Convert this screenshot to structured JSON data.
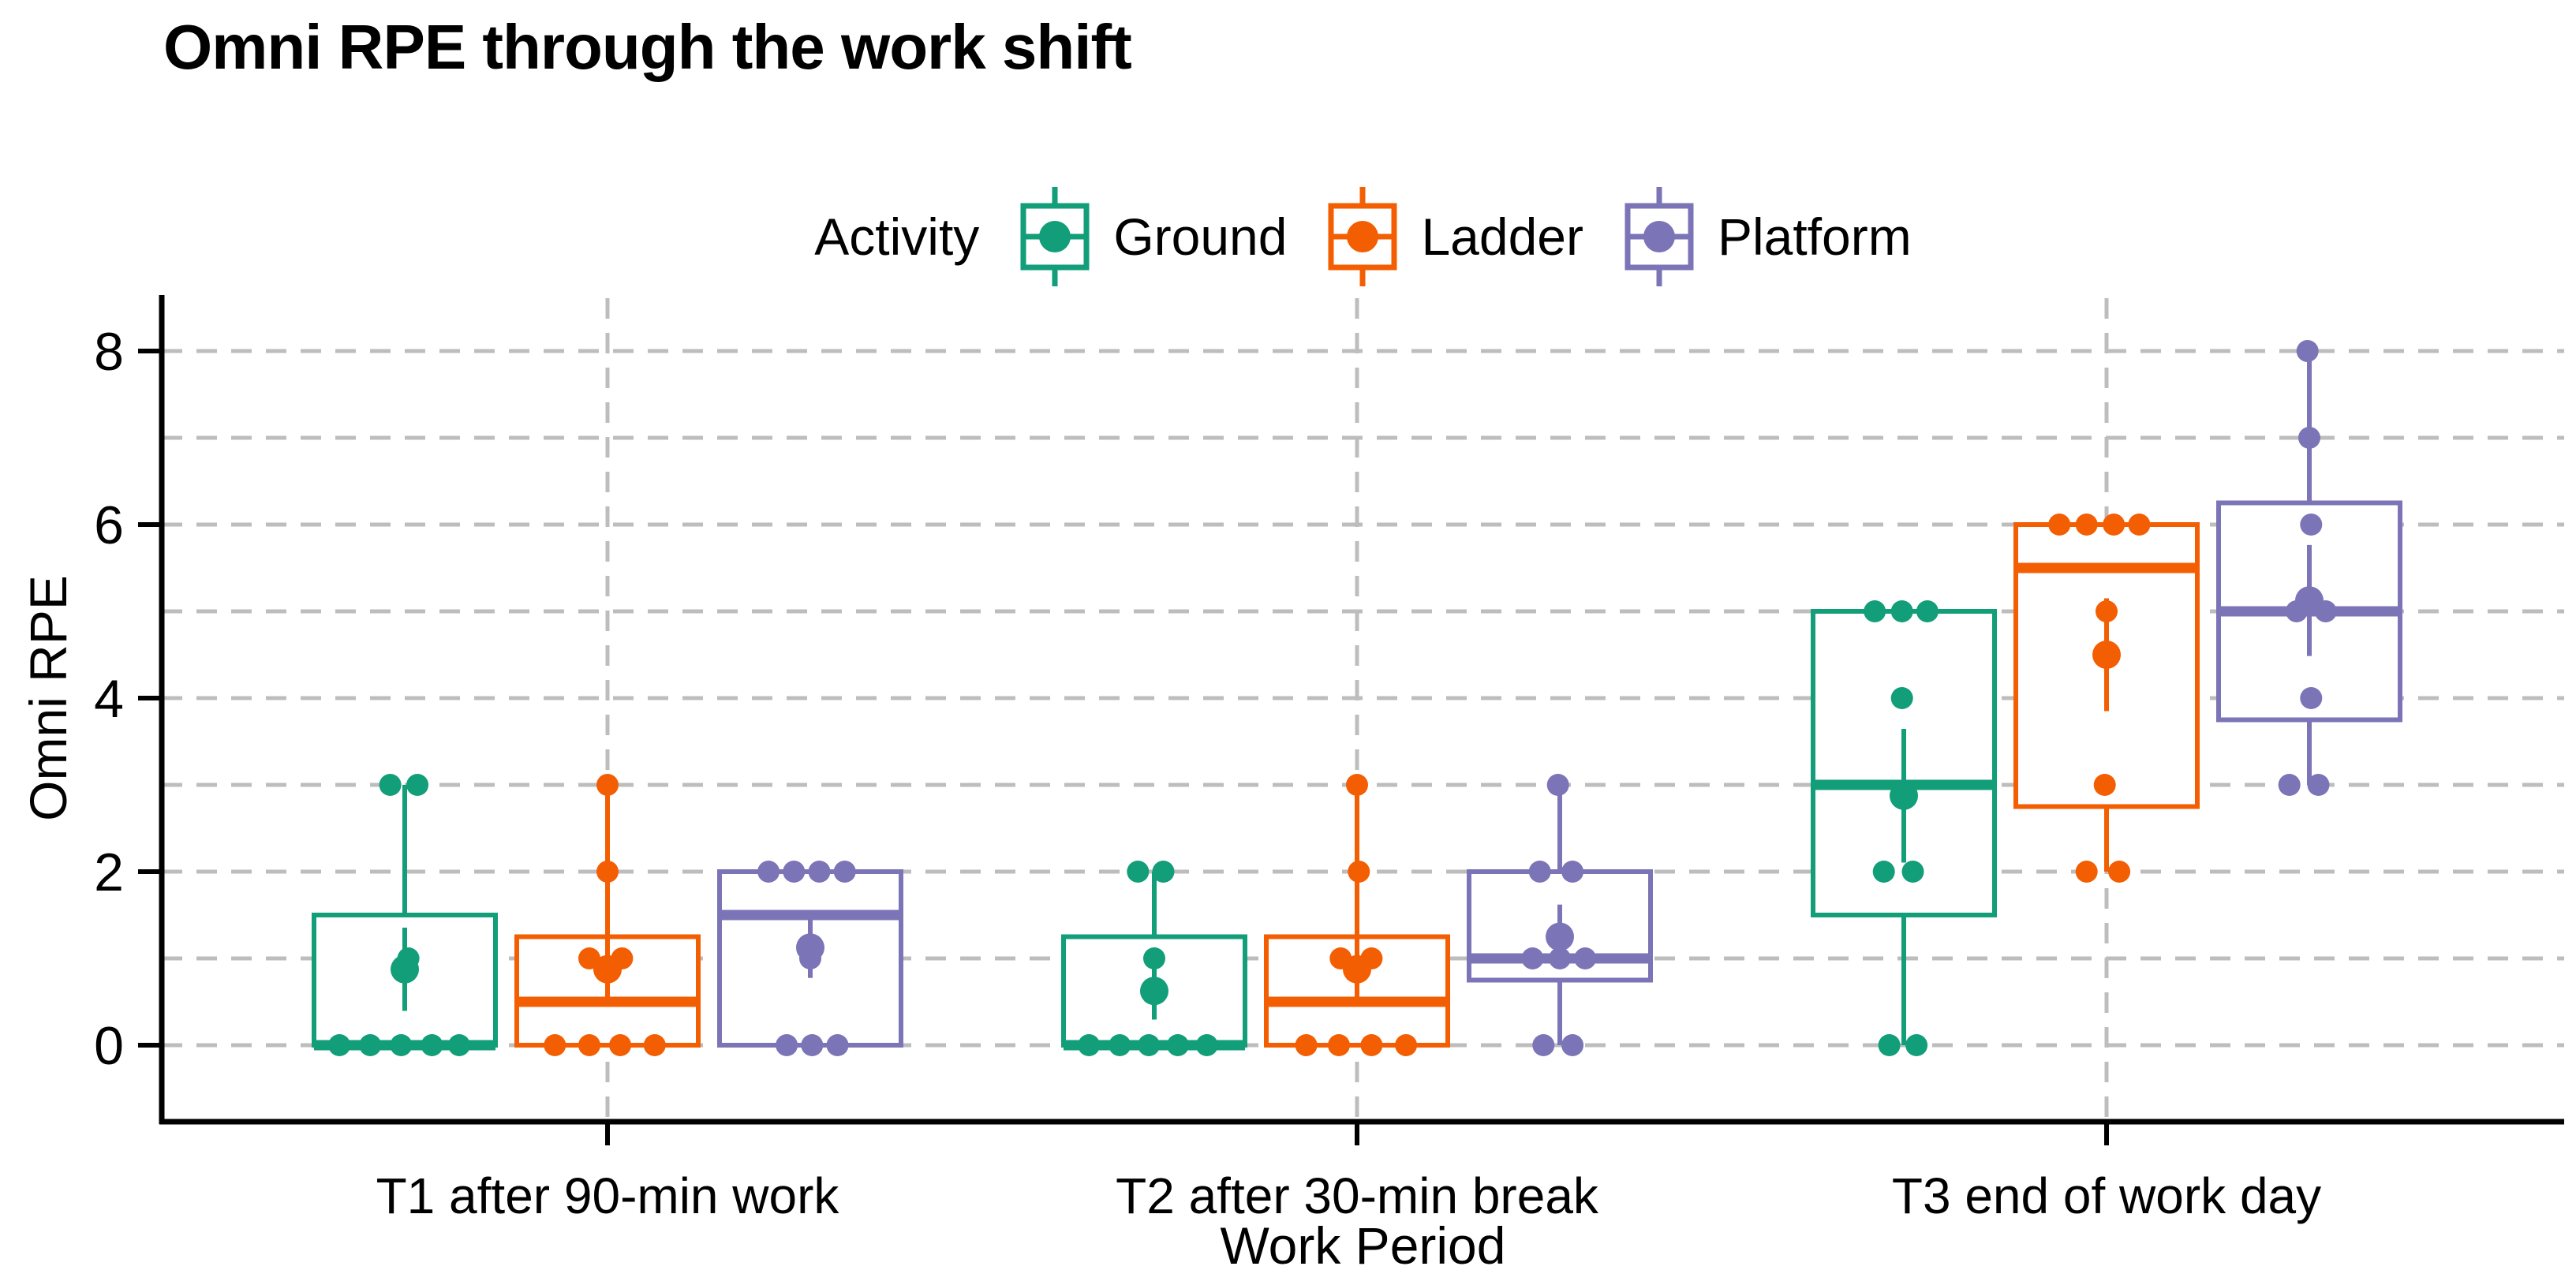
{
  "chart_data": {
    "type": "boxplot",
    "title": "Omni RPE through the work shift",
    "xlabel": "Work Period",
    "ylabel": "Omni RPE",
    "legend_title": "Activity",
    "legend_position": "top",
    "categories": [
      "T1 after 90-min work",
      "T2 after 30-min break",
      "T3 end of work day"
    ],
    "y_ticks": [
      0,
      2,
      4,
      6,
      8
    ],
    "ylim": [
      0,
      8
    ],
    "gridlines": {
      "style": "dashed",
      "color": "#bdbdbd",
      "y_values": [
        0,
        1,
        2,
        3,
        4,
        5,
        6,
        7,
        8
      ],
      "x_at_category_centers": true
    },
    "axis_color": "#000000",
    "text_color": "#000000",
    "overlay": "boxplot + jittered raw points + mean with standard-error bar",
    "series": [
      {
        "name": "Ground",
        "color": "#119E78",
        "boxes": [
          {
            "category": "T1 after 90-min work",
            "values": [
              0,
              0,
              0,
              0,
              0,
              1,
              3,
              3
            ],
            "q1": 0,
            "median": 0,
            "q3": 1.5,
            "whisker_low": 0,
            "whisker_high": 3,
            "mean": 0.875,
            "se": 0.48,
            "points": [
              {
                "v": 0,
                "j": -0.36
              },
              {
                "v": 0,
                "j": -0.19
              },
              {
                "v": 0,
                "j": -0.02
              },
              {
                "v": 0,
                "j": 0.15
              },
              {
                "v": 0,
                "j": 0.3
              },
              {
                "v": 1,
                "j": 0.02
              },
              {
                "v": 3,
                "j": -0.08
              },
              {
                "v": 3,
                "j": 0.07
              }
            ]
          },
          {
            "category": "T2 after 30-min break",
            "values": [
              0,
              0,
              0,
              0,
              0,
              1,
              2,
              2
            ],
            "q1": 0,
            "median": 0,
            "q3": 1.25,
            "whisker_low": 0,
            "whisker_high": 2,
            "mean": 0.625,
            "se": 0.33,
            "points": [
              {
                "v": 0,
                "j": -0.36
              },
              {
                "v": 0,
                "j": -0.19
              },
              {
                "v": 0,
                "j": -0.03
              },
              {
                "v": 0,
                "j": 0.13
              },
              {
                "v": 0,
                "j": 0.29
              },
              {
                "v": 1,
                "j": 0.0
              },
              {
                "v": 2,
                "j": -0.09
              },
              {
                "v": 2,
                "j": 0.05
              }
            ]
          },
          {
            "category": "T3 end of work day",
            "values": [
              0,
              0,
              2,
              2,
              4,
              5,
              5,
              5
            ],
            "q1": 1.5,
            "median": 3,
            "q3": 5,
            "whisker_low": 0,
            "whisker_high": 5,
            "mean": 2.875,
            "se": 0.77,
            "points": [
              {
                "v": 0,
                "j": -0.08
              },
              {
                "v": 0,
                "j": 0.07
              },
              {
                "v": 2,
                "j": -0.11
              },
              {
                "v": 2,
                "j": 0.05
              },
              {
                "v": 4,
                "j": -0.01
              },
              {
                "v": 5,
                "j": -0.16
              },
              {
                "v": 5,
                "j": -0.01
              },
              {
                "v": 5,
                "j": 0.13
              }
            ]
          }
        ]
      },
      {
        "name": "Ladder",
        "color": "#F45E02",
        "boxes": [
          {
            "category": "T1 after 90-min work",
            "values": [
              0,
              0,
              0,
              0,
              1,
              1,
              2,
              3
            ],
            "q1": 0,
            "median": 0.5,
            "q3": 1.25,
            "whisker_low": 0,
            "whisker_high": 3,
            "mean": 0.875,
            "se": 0.4,
            "points": [
              {
                "v": 0,
                "j": -0.29
              },
              {
                "v": 0,
                "j": -0.1
              },
              {
                "v": 0,
                "j": 0.07
              },
              {
                "v": 0,
                "j": 0.26
              },
              {
                "v": 1,
                "j": -0.1
              },
              {
                "v": 1,
                "j": 0.08
              },
              {
                "v": 2,
                "j": 0.0
              },
              {
                "v": 3,
                "j": 0.0
              }
            ]
          },
          {
            "category": "T2 after 30-min break",
            "values": [
              0,
              0,
              0,
              0,
              1,
              1,
              2,
              3
            ],
            "q1": 0,
            "median": 0.5,
            "q3": 1.25,
            "whisker_low": 0,
            "whisker_high": 3,
            "mean": 0.875,
            "se": 0.4,
            "points": [
              {
                "v": 0,
                "j": -0.28
              },
              {
                "v": 0,
                "j": -0.1
              },
              {
                "v": 0,
                "j": 0.08
              },
              {
                "v": 0,
                "j": 0.27
              },
              {
                "v": 1,
                "j": -0.09
              },
              {
                "v": 1,
                "j": 0.08
              },
              {
                "v": 2,
                "j": 0.01
              },
              {
                "v": 3,
                "j": 0.0
              }
            ]
          },
          {
            "category": "T3 end of work day",
            "values": [
              2,
              2,
              3,
              5,
              6,
              6,
              6,
              6
            ],
            "q1": 2.75,
            "median": 5.5,
            "q3": 6,
            "whisker_low": 2,
            "whisker_high": 6,
            "mean": 4.5,
            "se": 0.65,
            "points": [
              {
                "v": 2,
                "j": -0.11
              },
              {
                "v": 2,
                "j": 0.07
              },
              {
                "v": 3,
                "j": -0.01
              },
              {
                "v": 5,
                "j": 0.0
              },
              {
                "v": 6,
                "j": -0.26
              },
              {
                "v": 6,
                "j": -0.11
              },
              {
                "v": 6,
                "j": 0.04
              },
              {
                "v": 6,
                "j": 0.18
              }
            ]
          }
        ]
      },
      {
        "name": "Platform",
        "color": "#7B74B6",
        "boxes": [
          {
            "category": "T1 after 90-min work",
            "values": [
              0,
              0,
              0,
              1,
              2,
              2,
              2,
              2
            ],
            "q1": 0,
            "median": 1.5,
            "q3": 2,
            "whisker_low": 0,
            "whisker_high": 2,
            "mean": 1.125,
            "se": 0.35,
            "points": [
              {
                "v": 0,
                "j": -0.13
              },
              {
                "v": 0,
                "j": 0.01
              },
              {
                "v": 0,
                "j": 0.15
              },
              {
                "v": 1,
                "j": 0.0
              },
              {
                "v": 2,
                "j": -0.23
              },
              {
                "v": 2,
                "j": -0.09
              },
              {
                "v": 2,
                "j": 0.05
              },
              {
                "v": 2,
                "j": 0.19
              }
            ]
          },
          {
            "category": "T2 after 30-min break",
            "values": [
              0,
              0,
              1,
              1,
              1,
              2,
              2,
              3
            ],
            "q1": 0.75,
            "median": 1,
            "q3": 2,
            "whisker_low": 0,
            "whisker_high": 3,
            "mean": 1.25,
            "se": 0.37,
            "points": [
              {
                "v": 0,
                "j": -0.09
              },
              {
                "v": 0,
                "j": 0.07
              },
              {
                "v": 1,
                "j": -0.15
              },
              {
                "v": 1,
                "j": 0.0
              },
              {
                "v": 1,
                "j": 0.14
              },
              {
                "v": 2,
                "j": -0.11
              },
              {
                "v": 2,
                "j": 0.07
              },
              {
                "v": 3,
                "j": -0.01
              }
            ]
          },
          {
            "category": "T3 end of work day",
            "values": [
              3,
              3,
              4,
              5,
              5,
              6,
              7,
              8
            ],
            "q1": 3.75,
            "median": 5,
            "q3": 6.25,
            "whisker_low": 3,
            "whisker_high": 8,
            "mean": 5.125,
            "se": 0.64,
            "points": [
              {
                "v": 3,
                "j": -0.11
              },
              {
                "v": 3,
                "j": 0.05
              },
              {
                "v": 4,
                "j": 0.01
              },
              {
                "v": 5,
                "j": -0.07
              },
              {
                "v": 5,
                "j": 0.09
              },
              {
                "v": 6,
                "j": 0.01
              },
              {
                "v": 7,
                "j": 0.0
              },
              {
                "v": 8,
                "j": -0.01
              }
            ]
          }
        ]
      }
    ]
  }
}
